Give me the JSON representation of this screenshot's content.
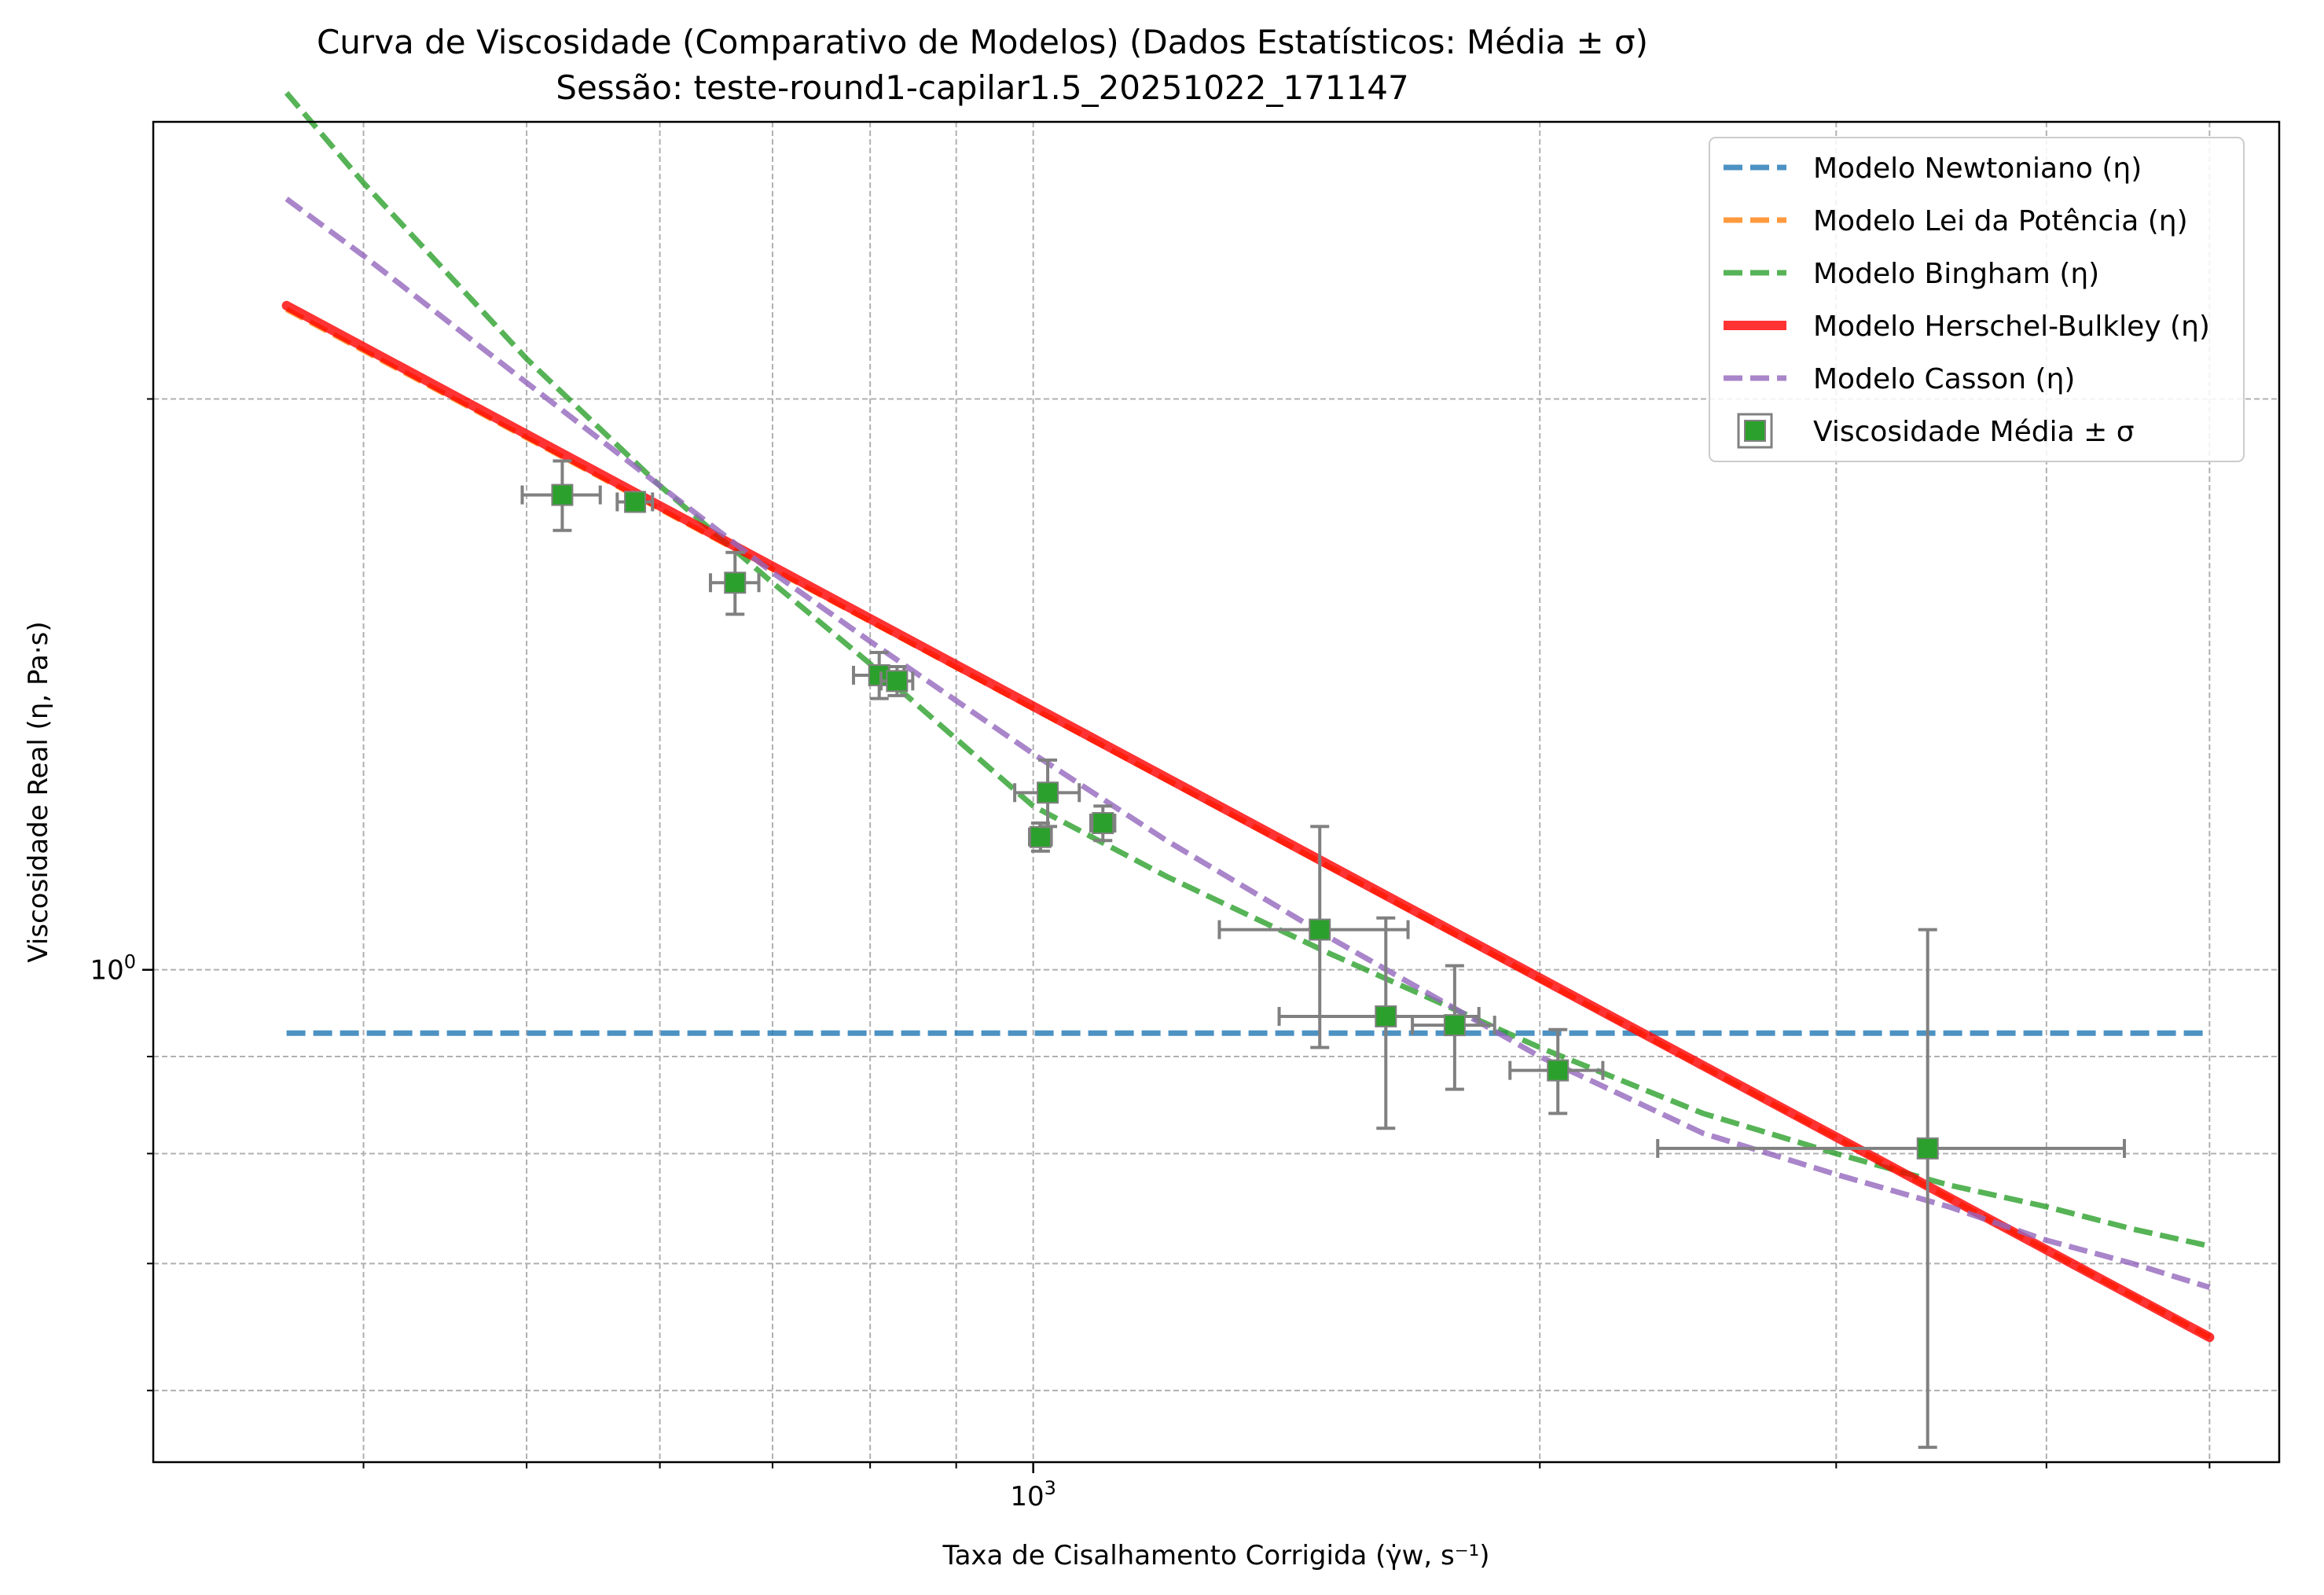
{
  "chart_data": {
    "type": "scatter",
    "title": "Curva de Viscosidade (Comparativo de Modelos) (Dados Estatísticos: Média ± σ)",
    "subtitle": "Sessão: teste-round1-capilar1.5_20251022_171147",
    "xlabel": "Taxa de Cisalhamento Corrigida (γ̇w, s⁻¹)",
    "ylabel": "Viscosidade Real (η, Pa·s)",
    "xscale": "log",
    "yscale": "log",
    "xlim": [
      300,
      5500
    ],
    "ylim": [
      0.55,
      2.8
    ],
    "x_ticks": [
      {
        "value": 1000,
        "label": "10",
        "exp": "3"
      }
    ],
    "y_ticks": [
      {
        "value": 1,
        "label": "10",
        "exp": "0"
      }
    ],
    "x_minor_ticks": [
      400,
      500,
      600,
      700,
      800,
      900,
      2000,
      3000,
      4000,
      5000
    ],
    "y_minor_ticks": [
      0.6,
      0.7,
      0.8,
      0.9,
      2.0
    ],
    "grid": true,
    "legend_position": "top-right",
    "series": [
      {
        "name": "Modelo Newtoniano (η)",
        "kind": "line",
        "style": "dashed",
        "color": "#1f77b4",
        "x": [
          360,
          5000
        ],
        "y": [
          0.926,
          0.926
        ]
      },
      {
        "name": "Modelo Lei da Potência (η)",
        "kind": "line",
        "style": "dashed",
        "color": "#ff7f0e",
        "x": [
          360,
          5000
        ],
        "y": [
          2.23,
          0.64
        ]
      },
      {
        "name": "Modelo Bingham (η)",
        "kind": "line",
        "style": "dashed",
        "color": "#2ca02c",
        "x": [
          360,
          400,
          500,
          600,
          700,
          800,
          1000,
          1200,
          1500,
          2000,
          2500,
          3000,
          3500,
          4000,
          4500,
          5000
        ],
        "y": [
          2.9,
          2.6,
          2.1,
          1.8,
          1.6,
          1.45,
          1.22,
          1.12,
          1.02,
          0.91,
          0.84,
          0.8,
          0.77,
          0.75,
          0.73,
          0.715
        ]
      },
      {
        "name": "Modelo Herschel-Bulkley (η)",
        "kind": "line",
        "style": "solid",
        "color": "#ff0000",
        "x": [
          360,
          5000
        ],
        "y": [
          2.24,
          0.64
        ]
      },
      {
        "name": "Modelo Casson (η)",
        "kind": "line",
        "style": "dashed",
        "color": "#9467bd",
        "x": [
          360,
          400,
          500,
          600,
          700,
          800,
          1000,
          1200,
          1500,
          2000,
          2500,
          3000,
          3500,
          4000,
          4500,
          5000
        ],
        "y": [
          2.55,
          2.38,
          2.04,
          1.8,
          1.62,
          1.49,
          1.3,
          1.17,
          1.04,
          0.9,
          0.82,
          0.78,
          0.75,
          0.72,
          0.7,
          0.68
        ]
      },
      {
        "name": "Viscosidade Média ± σ",
        "kind": "errorbar",
        "color": "#2ca02c",
        "points": [
          {
            "x": 525,
            "y": 1.78,
            "xerr": 28,
            "yerr": 0.075
          },
          {
            "x": 580,
            "y": 1.765,
            "xerr": 14,
            "yerr": 0.02
          },
          {
            "x": 665,
            "y": 1.6,
            "xerr": 22,
            "yerr": 0.06
          },
          {
            "x": 810,
            "y": 1.43,
            "xerr": 28,
            "yerr": 0.04
          },
          {
            "x": 830,
            "y": 1.42,
            "xerr": 18,
            "yerr": 0.025
          },
          {
            "x": 1010,
            "y": 1.175,
            "xerr": 15,
            "yerr": 0.02
          },
          {
            "x": 1020,
            "y": 1.24,
            "xerr": 45,
            "yerr": 0.05
          },
          {
            "x": 1100,
            "y": 1.195,
            "xerr": 18,
            "yerr": 0.025
          },
          {
            "x": 1480,
            "y": 1.05,
            "xerr": 190,
            "yerr": 0.14
          },
          {
            "x": 1620,
            "y": 0.945,
            "xerr": 220,
            "yerr": 0.12
          },
          {
            "x": 1780,
            "y": 0.935,
            "xerr": 100,
            "yerr": 0.07
          },
          {
            "x": 2050,
            "y": 0.885,
            "xerr": 130,
            "yerr": 0.045
          },
          {
            "x": 3400,
            "y": 0.805,
            "xerr": 1050,
            "yerr": 0.245
          }
        ]
      }
    ]
  }
}
